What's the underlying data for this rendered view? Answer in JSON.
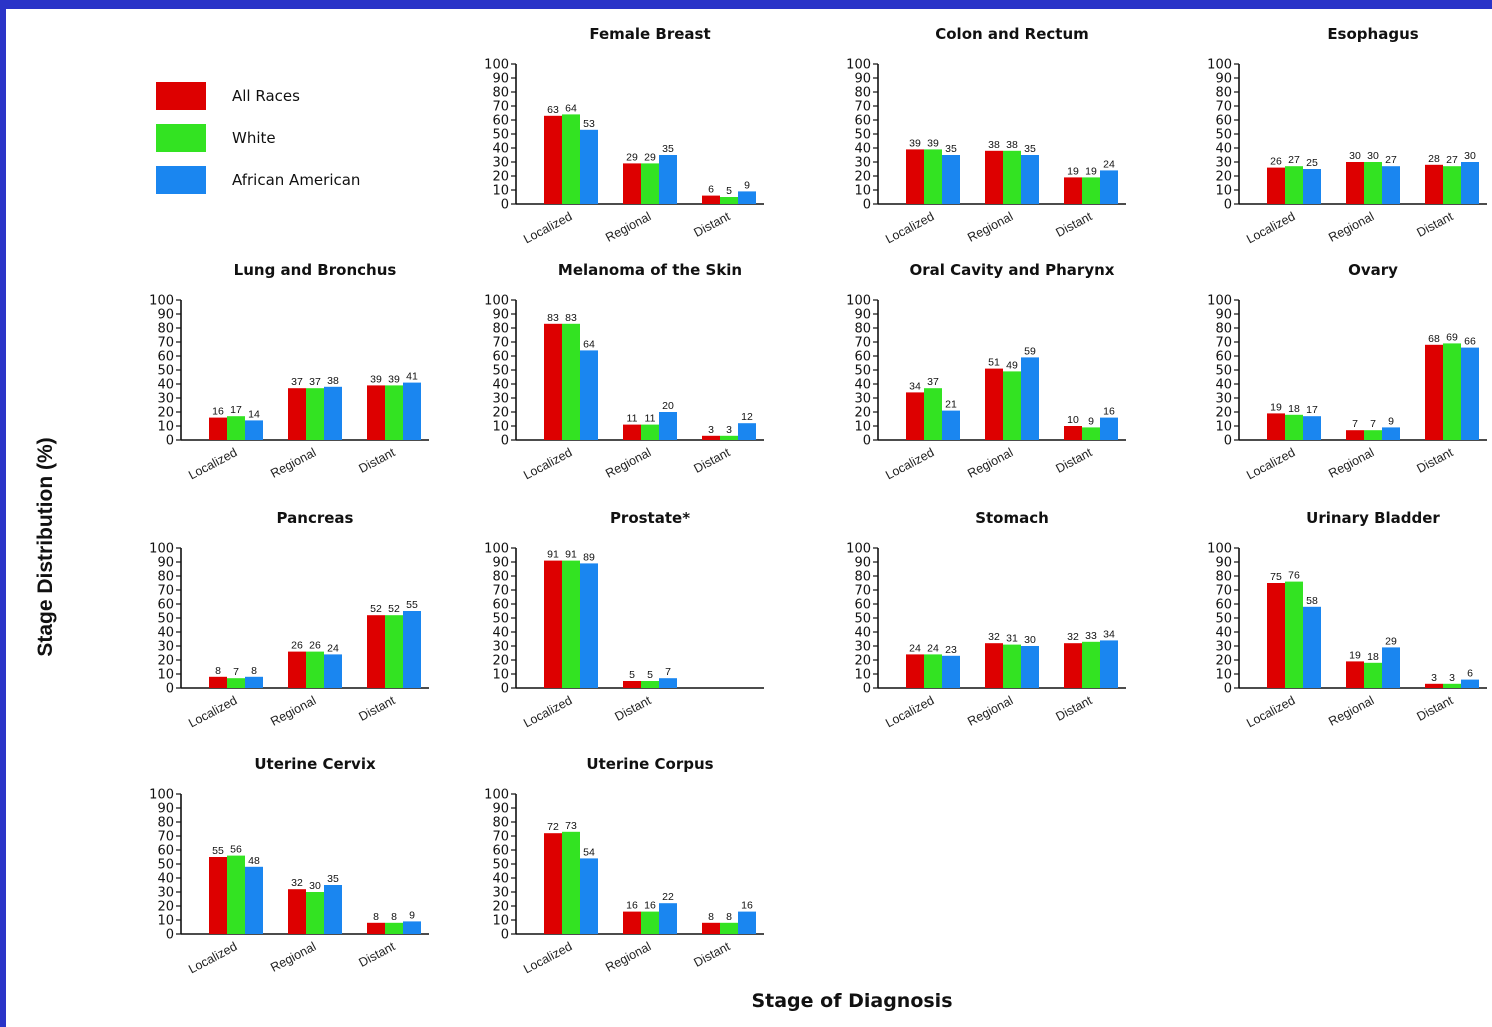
{
  "page": {
    "ylabel": "Stage Distribution (%)",
    "xlabel": "Stage of Diagnosis"
  },
  "legend": [
    {
      "name": "All Races",
      "color": "#dd0000"
    },
    {
      "name": "White",
      "color": "#33e322"
    },
    {
      "name": "African American",
      "color": "#1a86f0"
    }
  ],
  "chart_data": [
    {
      "type": "bar",
      "title": "Female Breast",
      "categories": [
        "Localized",
        "Regional",
        "Distant"
      ],
      "ylim": [
        0,
        100
      ],
      "series": [
        {
          "name": "All Races",
          "values": [
            63,
            29,
            6
          ]
        },
        {
          "name": "White",
          "values": [
            64,
            29,
            5
          ]
        },
        {
          "name": "African American",
          "values": [
            53,
            35,
            9
          ]
        }
      ]
    },
    {
      "type": "bar",
      "title": "Colon and Rectum",
      "categories": [
        "Localized",
        "Regional",
        "Distant"
      ],
      "ylim": [
        0,
        100
      ],
      "series": [
        {
          "name": "All Races",
          "values": [
            39,
            38,
            19
          ]
        },
        {
          "name": "White",
          "values": [
            39,
            38,
            19
          ]
        },
        {
          "name": "African American",
          "values": [
            35,
            35,
            24
          ]
        }
      ]
    },
    {
      "type": "bar",
      "title": "Esophagus",
      "categories": [
        "Localized",
        "Regional",
        "Distant"
      ],
      "ylim": [
        0,
        100
      ],
      "series": [
        {
          "name": "All Races",
          "values": [
            26,
            30,
            28
          ]
        },
        {
          "name": "White",
          "values": [
            27,
            30,
            27
          ]
        },
        {
          "name": "African American",
          "values": [
            25,
            27,
            30
          ]
        }
      ]
    },
    {
      "type": "bar",
      "title": "Lung and Bronchus",
      "categories": [
        "Localized",
        "Regional",
        "Distant"
      ],
      "ylim": [
        0,
        100
      ],
      "series": [
        {
          "name": "All Races",
          "values": [
            16,
            37,
            39
          ]
        },
        {
          "name": "White",
          "values": [
            17,
            37,
            39
          ]
        },
        {
          "name": "African American",
          "values": [
            14,
            38,
            41
          ]
        }
      ]
    },
    {
      "type": "bar",
      "title": "Melanoma of the Skin",
      "categories": [
        "Localized",
        "Regional",
        "Distant"
      ],
      "ylim": [
        0,
        100
      ],
      "series": [
        {
          "name": "All Races",
          "values": [
            83,
            11,
            3
          ]
        },
        {
          "name": "White",
          "values": [
            83,
            11,
            3
          ]
        },
        {
          "name": "African American",
          "values": [
            64,
            20,
            12
          ]
        }
      ]
    },
    {
      "type": "bar",
      "title": "Oral Cavity and Pharynx",
      "categories": [
        "Localized",
        "Regional",
        "Distant"
      ],
      "ylim": [
        0,
        100
      ],
      "series": [
        {
          "name": "All Races",
          "values": [
            34,
            51,
            10
          ]
        },
        {
          "name": "White",
          "values": [
            37,
            49,
            9
          ]
        },
        {
          "name": "African American",
          "values": [
            21,
            59,
            16
          ]
        }
      ]
    },
    {
      "type": "bar",
      "title": "Ovary",
      "categories": [
        "Localized",
        "Regional",
        "Distant"
      ],
      "ylim": [
        0,
        100
      ],
      "series": [
        {
          "name": "All Races",
          "values": [
            19,
            7,
            68
          ]
        },
        {
          "name": "White",
          "values": [
            18,
            7,
            69
          ]
        },
        {
          "name": "African American",
          "values": [
            17,
            9,
            66
          ]
        }
      ]
    },
    {
      "type": "bar",
      "title": "Pancreas",
      "categories": [
        "Localized",
        "Regional",
        "Distant"
      ],
      "ylim": [
        0,
        100
      ],
      "series": [
        {
          "name": "All Races",
          "values": [
            8,
            26,
            52
          ]
        },
        {
          "name": "White",
          "values": [
            7,
            26,
            52
          ]
        },
        {
          "name": "African American",
          "values": [
            8,
            24,
            55
          ]
        }
      ]
    },
    {
      "type": "bar",
      "title": "Prostate*",
      "categories": [
        "Localized",
        "Distant"
      ],
      "ylim": [
        0,
        100
      ],
      "series": [
        {
          "name": "All Races",
          "values": [
            91,
            5
          ]
        },
        {
          "name": "White",
          "values": [
            91,
            5
          ]
        },
        {
          "name": "African American",
          "values": [
            89,
            7
          ]
        }
      ]
    },
    {
      "type": "bar",
      "title": "Stomach",
      "categories": [
        "Localized",
        "Regional",
        "Distant"
      ],
      "ylim": [
        0,
        100
      ],
      "series": [
        {
          "name": "All Races",
          "values": [
            24,
            32,
            32
          ]
        },
        {
          "name": "White",
          "values": [
            24,
            31,
            33
          ]
        },
        {
          "name": "African American",
          "values": [
            23,
            30,
            34
          ]
        }
      ]
    },
    {
      "type": "bar",
      "title": "Urinary Bladder",
      "categories": [
        "Localized",
        "Regional",
        "Distant"
      ],
      "ylim": [
        0,
        100
      ],
      "series": [
        {
          "name": "All Races",
          "values": [
            75,
            19,
            3
          ]
        },
        {
          "name": "White",
          "values": [
            76,
            18,
            3
          ]
        },
        {
          "name": "African American",
          "values": [
            58,
            29,
            6
          ]
        }
      ]
    },
    {
      "type": "bar",
      "title": "Uterine Cervix",
      "categories": [
        "Localized",
        "Regional",
        "Distant"
      ],
      "ylim": [
        0,
        100
      ],
      "series": [
        {
          "name": "All Races",
          "values": [
            55,
            32,
            8
          ]
        },
        {
          "name": "White",
          "values": [
            56,
            30,
            8
          ]
        },
        {
          "name": "African American",
          "values": [
            48,
            35,
            9
          ]
        }
      ]
    },
    {
      "type": "bar",
      "title": "Uterine Corpus",
      "categories": [
        "Localized",
        "Regional",
        "Distant"
      ],
      "ylim": [
        0,
        100
      ],
      "series": [
        {
          "name": "All Races",
          "values": [
            72,
            16,
            8
          ]
        },
        {
          "name": "White",
          "values": [
            73,
            16,
            8
          ]
        },
        {
          "name": "African American",
          "values": [
            54,
            22,
            16
          ]
        }
      ]
    }
  ]
}
